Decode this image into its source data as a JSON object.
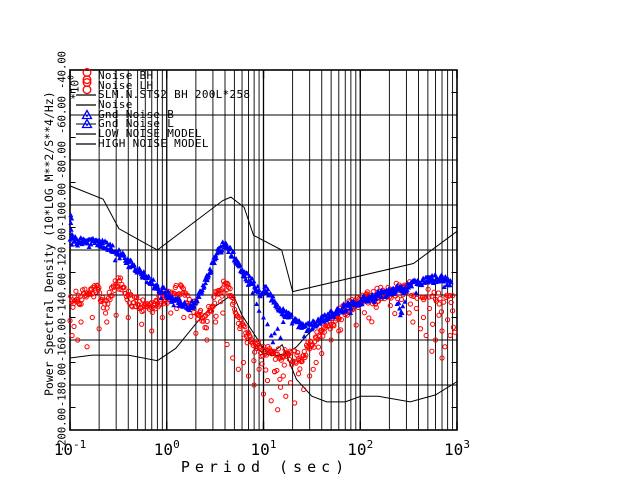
{
  "chart_data": {
    "type": "scatter",
    "title": "",
    "xlabel": "Period (sec)",
    "ylabel": "Power Spectral Density (10*LOG M**2/S**4/Hz)",
    "scale_label": {
      "base": "*10",
      "exp": "0"
    },
    "x_scale": "log",
    "xlim": [
      0.1,
      1000
    ],
    "ylim": [
      -200,
      -40
    ],
    "grid": true,
    "colors": {
      "background": "#ffffff",
      "axes": "#000000",
      "noise": "#ff0000",
      "gnd_noise": "#0000ff",
      "models": "#000000"
    },
    "x_ticks": [
      {
        "base": "10",
        "exp": "-1"
      },
      {
        "base": "10",
        "exp": "0"
      },
      {
        "base": "10",
        "exp": "1"
      },
      {
        "base": "10",
        "exp": "2"
      },
      {
        "base": "10",
        "exp": "3"
      }
    ],
    "y_tick_values": [
      -200,
      -180,
      -160,
      -140,
      -120,
      -100,
      -80,
      -60,
      -40
    ],
    "y_tick_labels": [
      "-200.00",
      "-180.00",
      "-160.00",
      "-140.00",
      "-120.00",
      "-100.00",
      "-80.00",
      "-60.00",
      "-40.00"
    ],
    "legend": [
      {
        "label": "Noise BH",
        "marker": "circle-pair",
        "color": "#ff0000"
      },
      {
        "label": "Noise LH",
        "marker": "circle-pair",
        "color": "#ff0000"
      },
      {
        "label": "SLM.N.STS2 BH 200L*258",
        "marker": "line",
        "color": "#000000"
      },
      {
        "label": "Noise",
        "marker": "line",
        "color": "#000000"
      },
      {
        "label": "Gnd Noise B",
        "marker": "triangle",
        "color": "#0000ff"
      },
      {
        "label": "Gnd Noise L",
        "marker": "triangle",
        "color": "#0000ff"
      },
      {
        "label": "LOW NOISE MODEL",
        "marker": "line",
        "color": "#000000"
      },
      {
        "label": "HIGH NOISE MODEL",
        "marker": "line",
        "color": "#000000"
      }
    ],
    "series": [
      {
        "name": "HIGH NOISE MODEL",
        "type": "line",
        "color": "#000000",
        "width": 1,
        "points": [
          [
            0.1,
            -91.5
          ],
          [
            0.22,
            -97.4
          ],
          [
            0.32,
            -110.5
          ],
          [
            0.8,
            -120.0
          ],
          [
            3.8,
            -98.0
          ],
          [
            4.6,
            -96.5
          ],
          [
            6.3,
            -101.0
          ],
          [
            7.9,
            -113.5
          ],
          [
            15.4,
            -120.0
          ],
          [
            20.0,
            -138.5
          ],
          [
            354.8,
            -126.0
          ],
          [
            1000,
            -111.7
          ]
        ]
      },
      {
        "name": "LOW NOISE MODEL",
        "type": "line",
        "color": "#000000",
        "width": 1,
        "points": [
          [
            0.1,
            -168.0
          ],
          [
            0.17,
            -166.7
          ],
          [
            0.4,
            -166.7
          ],
          [
            0.8,
            -169.2
          ],
          [
            1.24,
            -163.7
          ],
          [
            2.4,
            -148.6
          ],
          [
            4.3,
            -141.1
          ],
          [
            5.0,
            -141.1
          ],
          [
            6.0,
            -149.0
          ],
          [
            10.0,
            -163.8
          ],
          [
            12.0,
            -166.2
          ],
          [
            15.6,
            -162.1
          ],
          [
            21.9,
            -177.5
          ],
          [
            31.6,
            -185.0
          ],
          [
            45.0,
            -187.5
          ],
          [
            70.0,
            -187.5
          ],
          [
            101.0,
            -185.0
          ],
          [
            154.0,
            -185.0
          ],
          [
            328.0,
            -187.5
          ],
          [
            600.0,
            -184.4
          ],
          [
            1000,
            -178.5
          ]
        ]
      },
      {
        "name": "SLM.N.STS2 BH 200L*258",
        "type": "line",
        "color": "#000000",
        "width": 1,
        "points": [
          [
            8,
            -163
          ],
          [
            10,
            -166
          ],
          [
            13,
            -167
          ],
          [
            17,
            -166
          ],
          [
            22,
            -163
          ],
          [
            28,
            -158
          ],
          [
            35,
            -154
          ],
          [
            45,
            -150
          ],
          [
            60,
            -147
          ],
          [
            80,
            -144.5
          ],
          [
            100,
            -143
          ],
          [
            140,
            -140.5
          ],
          [
            200,
            -137.5
          ],
          [
            260,
            -136
          ],
          [
            330,
            -135
          ],
          [
            420,
            -134
          ],
          [
            520,
            -133.5
          ],
          [
            650,
            -133
          ],
          [
            800,
            -133.5
          ]
        ]
      },
      {
        "name": "Noise BH / Noise LH",
        "type": "scatter-band",
        "marker": "circle",
        "color": "#ff0000",
        "count": 520,
        "jitter": 3.2,
        "points": [
          [
            0.1,
            -143.5
          ],
          [
            0.115,
            -141.5
          ],
          [
            0.13,
            -141.0
          ],
          [
            0.16,
            -139.0
          ],
          [
            0.2,
            -137.5
          ],
          [
            0.23,
            -146.0
          ],
          [
            0.26,
            -141.0
          ],
          [
            0.3,
            -136.0
          ],
          [
            0.33,
            -134.5
          ],
          [
            0.38,
            -139.0
          ],
          [
            0.45,
            -142.0
          ],
          [
            0.55,
            -145.0
          ],
          [
            0.64,
            -147.0
          ],
          [
            0.75,
            -145.0
          ],
          [
            0.9,
            -142.0
          ],
          [
            1.1,
            -139.5
          ],
          [
            1.35,
            -138.0
          ],
          [
            1.6,
            -140.5
          ],
          [
            1.9,
            -145.0
          ],
          [
            2.2,
            -149.0
          ],
          [
            2.5,
            -151.5
          ],
          [
            2.8,
            -147.0
          ],
          [
            3.2,
            -141.0
          ],
          [
            3.6,
            -138.0
          ],
          [
            4.0,
            -136.5
          ],
          [
            4.4,
            -139.0
          ],
          [
            5.0,
            -145.0
          ],
          [
            5.7,
            -152.0
          ],
          [
            6.5,
            -157.0
          ],
          [
            7.5,
            -161.0
          ],
          [
            9,
            -164.0
          ],
          [
            11,
            -165.5
          ],
          [
            14,
            -166.5
          ],
          [
            18,
            -167.0
          ],
          [
            22,
            -167.5
          ],
          [
            26,
            -166.0
          ],
          [
            32,
            -161.0
          ],
          [
            40,
            -156.0
          ],
          [
            50,
            -151.5
          ],
          [
            65,
            -147.5
          ],
          [
            80,
            -145.0
          ],
          [
            100,
            -143.0
          ],
          [
            130,
            -141.0
          ],
          [
            170,
            -139.0
          ],
          [
            220,
            -137.5
          ],
          [
            280,
            -136.5
          ],
          [
            340,
            -137.5
          ],
          [
            420,
            -139.0
          ],
          [
            520,
            -140.0
          ],
          [
            650,
            -141.0
          ],
          [
            800,
            -142.0
          ],
          [
            950,
            -143.0
          ]
        ],
        "outliers": [
          [
            0.105,
            -158
          ],
          [
            0.11,
            -154
          ],
          [
            0.12,
            -160
          ],
          [
            0.13,
            -152
          ],
          [
            0.15,
            -163
          ],
          [
            0.17,
            -150
          ],
          [
            0.2,
            -155
          ],
          [
            0.24,
            -152
          ],
          [
            0.3,
            -149
          ],
          [
            0.4,
            -150
          ],
          [
            0.55,
            -153
          ],
          [
            0.7,
            -156
          ],
          [
            0.9,
            -150
          ],
          [
            1.1,
            -148
          ],
          [
            1.5,
            -150
          ],
          [
            2.0,
            -157
          ],
          [
            2.6,
            -160
          ],
          [
            3.2,
            -152
          ],
          [
            3.8,
            -148
          ],
          [
            4.2,
            -162
          ],
          [
            4.8,
            -168
          ],
          [
            5.5,
            -173
          ],
          [
            6.2,
            -170
          ],
          [
            7,
            -176
          ],
          [
            8,
            -180
          ],
          [
            9,
            -173
          ],
          [
            10,
            -184
          ],
          [
            11,
            -178
          ],
          [
            12,
            -187
          ],
          [
            13,
            -174
          ],
          [
            14,
            -191
          ],
          [
            15,
            -181
          ],
          [
            16,
            -176
          ],
          [
            17,
            -185
          ],
          [
            19,
            -179
          ],
          [
            21,
            -188
          ],
          [
            23,
            -175
          ],
          [
            26,
            -182
          ],
          [
            30,
            -176
          ],
          [
            35,
            -170
          ],
          [
            40,
            -166
          ],
          [
            50,
            -160
          ],
          [
            60,
            -156
          ],
          [
            320,
            -148
          ],
          [
            330,
            -144
          ],
          [
            350,
            -152
          ],
          [
            380,
            -146
          ],
          [
            420,
            -155
          ],
          [
            450,
            -150
          ],
          [
            480,
            -158
          ],
          [
            520,
            -146
          ],
          [
            550,
            -165
          ],
          [
            560,
            -153
          ],
          [
            600,
            -160
          ],
          [
            650,
            -149
          ],
          [
            700,
            -156
          ],
          [
            700,
            -168
          ],
          [
            750,
            -163
          ],
          [
            800,
            -151
          ],
          [
            850,
            -158
          ],
          [
            900,
            -147
          ]
        ]
      },
      {
        "name": "Gnd Noise B / Gnd Noise L",
        "type": "scatter-band",
        "marker": "triangle",
        "color": "#0000ff",
        "count": 600,
        "jitter": 1.9,
        "points": [
          [
            0.1,
            -116.0
          ],
          [
            0.12,
            -115.5
          ],
          [
            0.14,
            -116.5
          ],
          [
            0.17,
            -115.5
          ],
          [
            0.2,
            -117.0
          ],
          [
            0.24,
            -118.0
          ],
          [
            0.28,
            -119.5
          ],
          [
            0.33,
            -122.0
          ],
          [
            0.4,
            -125.5
          ],
          [
            0.48,
            -128.5
          ],
          [
            0.58,
            -131.5
          ],
          [
            0.7,
            -134.5
          ],
          [
            0.85,
            -137.5
          ],
          [
            1.0,
            -139.5
          ],
          [
            1.2,
            -142.0
          ],
          [
            1.45,
            -144.0
          ],
          [
            1.7,
            -145.5
          ],
          [
            2.0,
            -143.5
          ],
          [
            2.3,
            -138.5
          ],
          [
            2.7,
            -131.0
          ],
          [
            3.1,
            -124.5
          ],
          [
            3.5,
            -119.5
          ],
          [
            3.9,
            -117.5
          ],
          [
            4.3,
            -119.0
          ],
          [
            4.8,
            -122.0
          ],
          [
            5.5,
            -126.5
          ],
          [
            6.3,
            -130.5
          ],
          [
            7.2,
            -133.5
          ],
          [
            8.2,
            -135.5
          ],
          [
            9.2,
            -139.0
          ],
          [
            10.5,
            -137.0
          ],
          [
            12,
            -141.0
          ],
          [
            13.5,
            -144.5
          ],
          [
            15,
            -146.5
          ],
          [
            17,
            -148.5
          ],
          [
            20,
            -151.0
          ],
          [
            24,
            -153.5
          ],
          [
            28,
            -154.5
          ],
          [
            33,
            -153.0
          ],
          [
            40,
            -151.0
          ],
          [
            50,
            -148.5
          ],
          [
            62,
            -146.5
          ],
          [
            78,
            -144.5
          ],
          [
            95,
            -143.0
          ],
          [
            120,
            -141.5
          ],
          [
            150,
            -140.0
          ],
          [
            190,
            -139.0
          ],
          [
            230,
            -137.5
          ],
          [
            270,
            -138.0
          ],
          [
            320,
            -136.0
          ],
          [
            380,
            -134.5
          ],
          [
            450,
            -133.5
          ],
          [
            550,
            -133.0
          ],
          [
            650,
            -132.5
          ],
          [
            760,
            -133.5
          ],
          [
            870,
            -135.0
          ]
        ],
        "outliers": [
          [
            0.102,
            -104.5
          ],
          [
            0.102,
            -108
          ],
          [
            0.103,
            -111
          ],
          [
            0.104,
            -106
          ],
          [
            0.105,
            -113
          ],
          [
            8.5,
            -144
          ],
          [
            9,
            -147
          ],
          [
            10,
            -150
          ],
          [
            11,
            -153
          ],
          [
            12,
            -158
          ],
          [
            12.5,
            -161
          ],
          [
            13,
            -157
          ],
          [
            14,
            -155
          ],
          [
            15,
            -159
          ],
          [
            16,
            -152
          ],
          [
            18,
            -150
          ],
          [
            240,
            -144
          ],
          [
            250,
            -143.5
          ],
          [
            255,
            -146
          ],
          [
            260,
            -149
          ],
          [
            265,
            -147.5
          ],
          [
            270,
            -148
          ],
          [
            275,
            -145
          ],
          [
            290,
            -143
          ]
        ]
      }
    ]
  }
}
